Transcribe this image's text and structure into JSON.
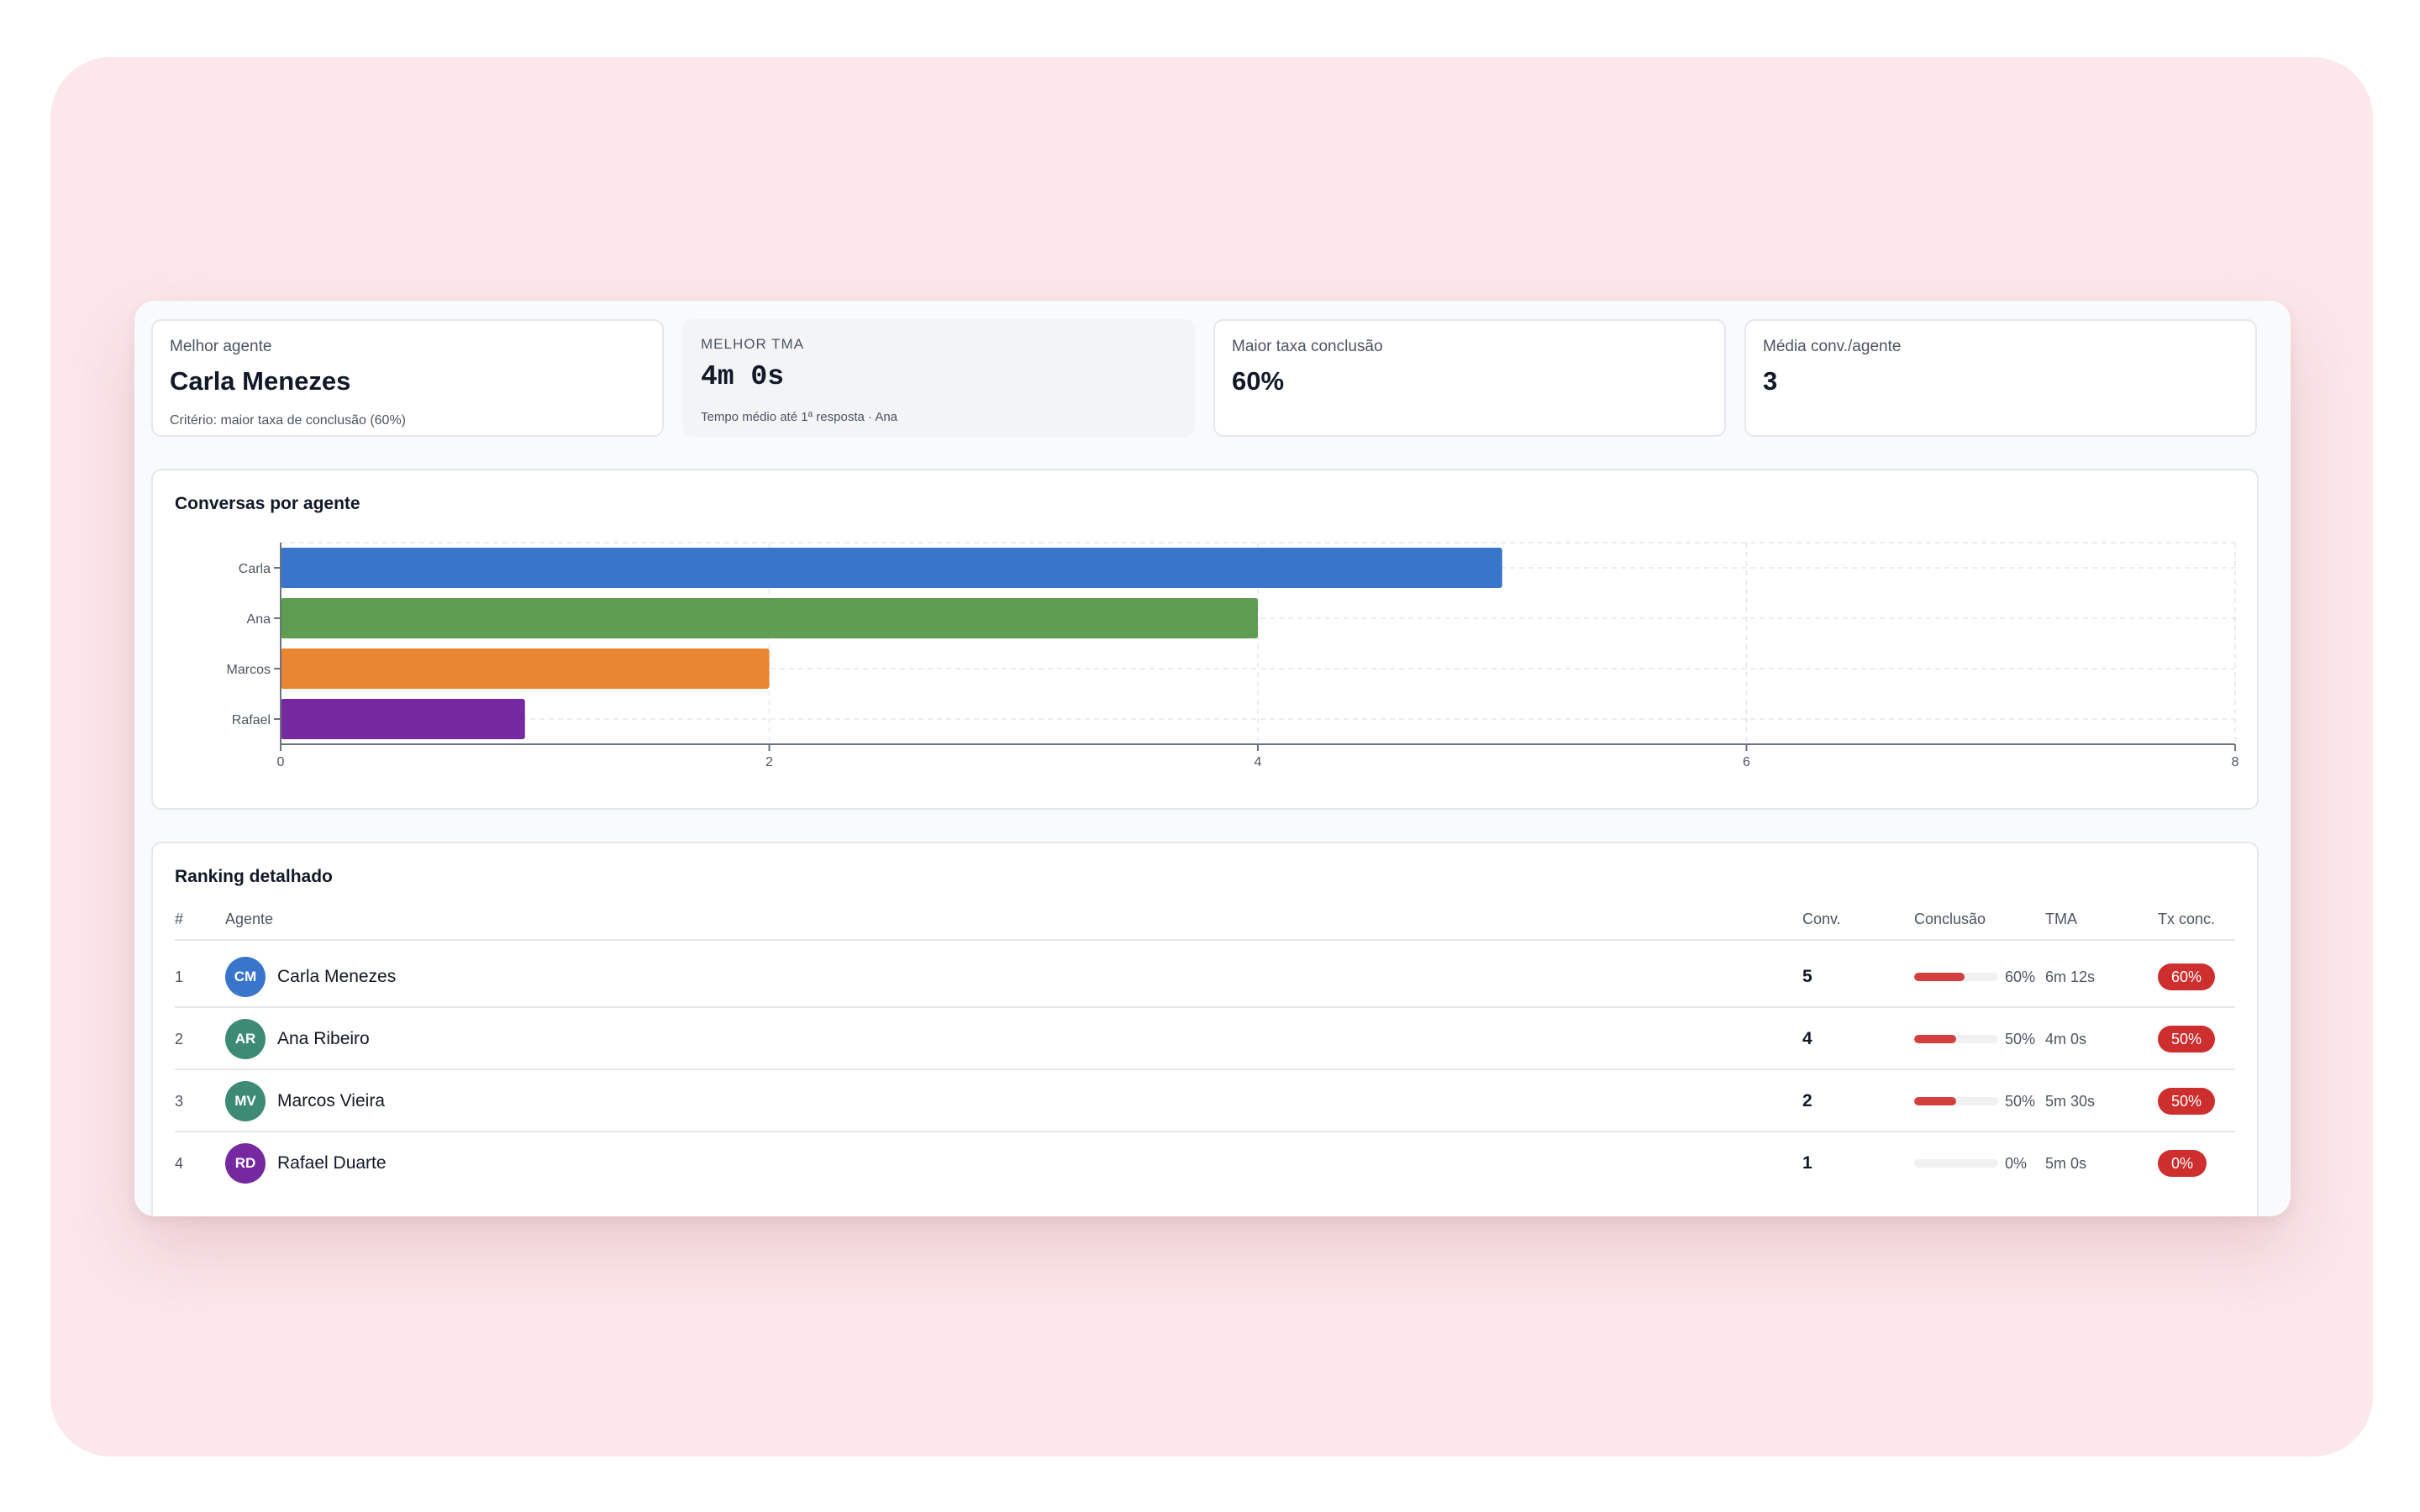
{
  "kpis": {
    "best_agent": {
      "label": "Melhor agente",
      "value": "Carla Menezes",
      "sub": "Critério: maior taxa de conclusão (60%)"
    },
    "best_tma": {
      "label": "MELHOR TMA",
      "value": "4m 0s",
      "sub": "Tempo médio até 1ª resposta · Ana"
    },
    "best_completion": {
      "label": "Maior taxa conclusão",
      "value": "60%"
    },
    "avg_conv": {
      "label": "Média conv./agente",
      "value": "3"
    }
  },
  "chart": {
    "title": "Conversas por agente"
  },
  "chart_data": {
    "type": "bar",
    "orientation": "horizontal",
    "title": "Conversas por agente",
    "categories": [
      "Carla",
      "Ana",
      "Marcos",
      "Rafael"
    ],
    "values": [
      5,
      4,
      2,
      1
    ],
    "colors": [
      "#3a75cc",
      "#5f9e52",
      "#e88631",
      "#7628a0"
    ],
    "xlim": [
      0,
      8
    ],
    "xticks": [
      "0",
      "2",
      "4",
      "6",
      "8"
    ],
    "grid": true,
    "legend": "none"
  },
  "ranking": {
    "title": "Ranking detalhado",
    "headers": {
      "rank": "#",
      "agent": "Agente",
      "conv": "Conv.",
      "completion": "Conclusão",
      "tma": "TMA",
      "rate": "Tx conc."
    },
    "rows": [
      {
        "rank": "1",
        "initials": "CM",
        "avatar_color": "#3a75cc",
        "name": "Carla Menezes",
        "conv": "5",
        "completion_fraction": 0.6,
        "completion": "60%",
        "tma": "6m 12s",
        "rate": "60%"
      },
      {
        "rank": "2",
        "initials": "AR",
        "avatar_color": "#3d8a75",
        "name": "Ana Ribeiro",
        "conv": "4",
        "completion_fraction": 0.5,
        "completion": "50%",
        "tma": "4m 0s",
        "rate": "50%"
      },
      {
        "rank": "3",
        "initials": "MV",
        "avatar_color": "#3d8a75",
        "name": "Marcos Vieira",
        "conv": "2",
        "completion_fraction": 0.5,
        "completion": "50%",
        "tma": "5m 30s",
        "rate": "50%"
      },
      {
        "rank": "4",
        "initials": "RD",
        "avatar_color": "#7628a0",
        "name": "Rafael Duarte",
        "conv": "1",
        "completion_fraction": 0.0,
        "completion": "0%",
        "tma": "5m 0s",
        "rate": "0%"
      }
    ]
  },
  "colors": {
    "backdrop": "#fce7ea",
    "badge": "#cd2e2e",
    "progress_fill": "#d23f3f"
  }
}
